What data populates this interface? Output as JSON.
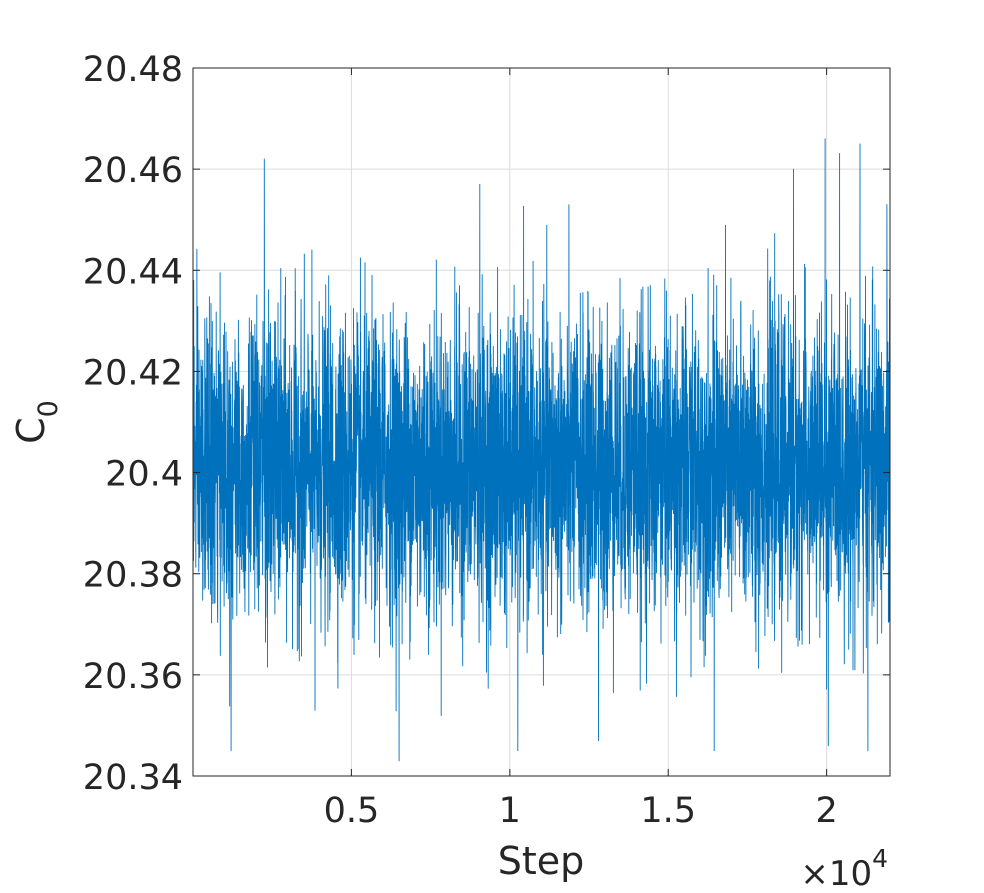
{
  "chart_data": {
    "type": "line",
    "title": "",
    "xlabel": "Step",
    "ylabel": "C",
    "ylabel_subscript": "0",
    "x_multiplier": "×10",
    "x_multiplier_exponent": "4",
    "xlim": [
      0,
      22000
    ],
    "ylim": [
      20.34,
      20.48
    ],
    "grid": true,
    "x_ticks": [
      {
        "value": 5000,
        "label": "0.5"
      },
      {
        "value": 10000,
        "label": "1"
      },
      {
        "value": 15000,
        "label": "1.5"
      },
      {
        "value": 20000,
        "label": "2"
      }
    ],
    "y_ticks": [
      {
        "value": 20.34,
        "label": "20.34"
      },
      {
        "value": 20.36,
        "label": "20.36"
      },
      {
        "value": 20.38,
        "label": "20.38"
      },
      {
        "value": 20.4,
        "label": "20.4"
      },
      {
        "value": 20.42,
        "label": "20.42"
      },
      {
        "value": 20.44,
        "label": "20.44"
      },
      {
        "value": 20.46,
        "label": "20.46"
      },
      {
        "value": 20.48,
        "label": "20.48"
      }
    ],
    "series": [
      {
        "color": "#0072bd",
        "n_points": 22000,
        "mean": 20.401,
        "std": 0.0145,
        "notable_points": [
          {
            "x": 20,
            "y": 20.438
          },
          {
            "x": 1200,
            "y": 20.345
          },
          {
            "x": 2250,
            "y": 20.462
          },
          {
            "x": 3850,
            "y": 20.353
          },
          {
            "x": 6500,
            "y": 20.343
          },
          {
            "x": 9050,
            "y": 20.457
          },
          {
            "x": 10250,
            "y": 20.345
          },
          {
            "x": 12800,
            "y": 20.347
          },
          {
            "x": 16450,
            "y": 20.345
          },
          {
            "x": 18950,
            "y": 20.46
          },
          {
            "x": 19950,
            "y": 20.466
          },
          {
            "x": 20050,
            "y": 20.346
          },
          {
            "x": 21050,
            "y": 20.465
          },
          {
            "x": 21300,
            "y": 20.345
          },
          {
            "x": 21900,
            "y": 20.453
          }
        ]
      }
    ]
  }
}
